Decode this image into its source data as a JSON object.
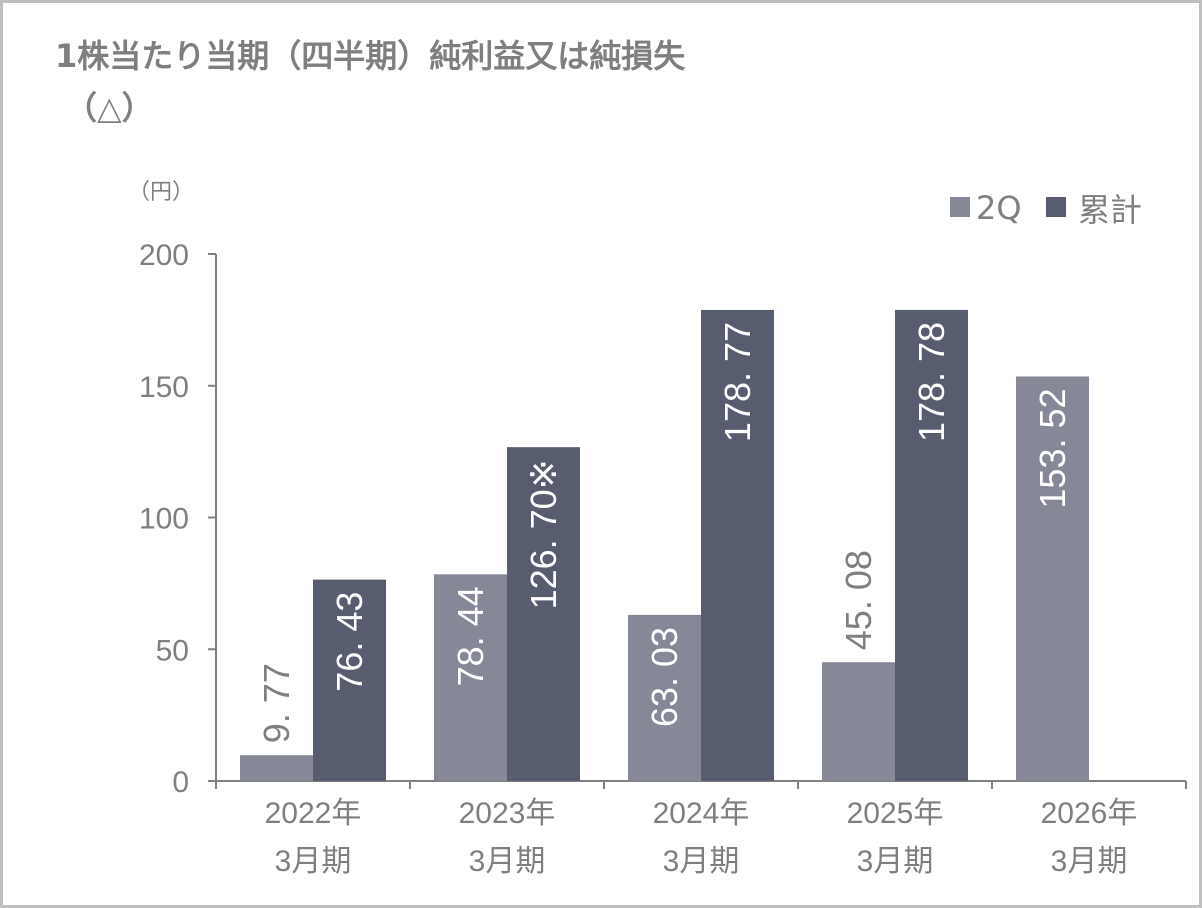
{
  "chart_data": {
    "type": "bar",
    "title_lines": [
      "1株当たり当期（四半期）純利益又は純損失",
      "（△）"
    ],
    "ylabel": "（円）",
    "ylim": [
      0,
      200
    ],
    "yticks": [
      "0",
      "50",
      "100",
      "150",
      "200"
    ],
    "grid": false,
    "legend_position": "top-right",
    "categories": [
      [
        "2022年",
        "3月期"
      ],
      [
        "2023年",
        "3月期"
      ],
      [
        "2024年",
        "3月期"
      ],
      [
        "2025年",
        "3月期"
      ],
      [
        "2026年",
        "3月期"
      ]
    ],
    "series": [
      {
        "name": "2Q",
        "color": "#868898",
        "values": [
          9.77,
          78.44,
          63.03,
          45.08,
          153.52
        ],
        "labels": [
          "9. 77",
          "78. 44",
          "63. 03",
          "45. 08",
          "153. 52"
        ]
      },
      {
        "name": "累計",
        "color": "#585c6f",
        "values": [
          76.43,
          126.7,
          178.77,
          178.78,
          null
        ],
        "labels": [
          "76. 43",
          "126. 70※",
          "178. 77",
          "178. 78",
          ""
        ]
      }
    ]
  }
}
